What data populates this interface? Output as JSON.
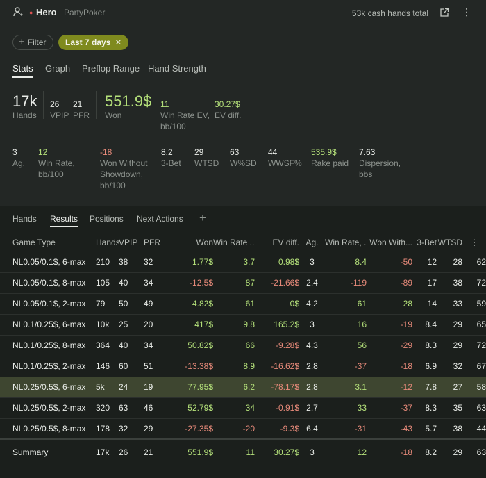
{
  "header": {
    "hero": "Hero",
    "site": "PartyPoker",
    "total": "53k cash hands total",
    "more_icon": "⋮"
  },
  "filters": {
    "filter_label": "Filter",
    "chip_label": "Last 7 days",
    "chip_close": "✕"
  },
  "tabs_top": [
    "Stats",
    "Graph",
    "Preflop Range",
    "Hand Strength"
  ],
  "stats_top": {
    "hands": {
      "value": "17k",
      "label": "Hands"
    },
    "vpip": {
      "value": "26",
      "label": "VPIP"
    },
    "pfr": {
      "value": "21",
      "label": "PFR"
    },
    "won": {
      "value": "551.9$",
      "label": "Won"
    },
    "winrate_ev": {
      "value": "11",
      "label1": "Win Rate EV,",
      "label2": "bb/100"
    },
    "ev_diff": {
      "value": "30.27$",
      "label": "EV diff."
    }
  },
  "stats_bottom": {
    "ag": {
      "value": "3",
      "label": "Ag."
    },
    "winrate": {
      "value": "12",
      "label1": "Win Rate,",
      "label2": "bb/100"
    },
    "wws": {
      "value": "-18",
      "label1": "Won Without",
      "label2": "Showdown,",
      "label3": "bb/100"
    },
    "threebet": {
      "value": "8.2",
      "label": "3-Bet"
    },
    "wtsd": {
      "value": "29",
      "label": "WTSD"
    },
    "wsd": {
      "value": "63",
      "label": "W%SD"
    },
    "wwsf": {
      "value": "44",
      "label": "WWSF%"
    },
    "rake": {
      "value": "535.9$",
      "label": "Rake paid"
    },
    "disp": {
      "value": "7.63",
      "label1": "Dispersion,",
      "label2": "bbs"
    }
  },
  "tabs_bottom": [
    "Hands",
    "Results",
    "Positions",
    "Next Actions"
  ],
  "tab_add": "+",
  "table": {
    "headers": [
      "Game Type",
      "Hands",
      "VPIP",
      "PFR",
      "Won",
      "Win Rate ...",
      "EV diff.",
      "Ag.",
      "Win Rate, ...",
      "Won With...",
      "3-Bet",
      "WTSD",
      "⋮"
    ],
    "rows": [
      [
        "NL0.05/0.1$, 6-max",
        "210",
        "38",
        "32",
        "1.77$",
        "3.7",
        "0.98$",
        "3",
        "8.4",
        "-50",
        "12",
        "28",
        "62"
      ],
      [
        "NL0.05/0.1$, 8-max",
        "105",
        "40",
        "34",
        "-12.5$",
        "87",
        "-21.66$",
        "2.4",
        "-119",
        "-89",
        "17",
        "38",
        "72"
      ],
      [
        "NL0.05/0.1$, 2-max",
        "79",
        "50",
        "49",
        "4.82$",
        "61",
        "0$",
        "4.2",
        "61",
        "28",
        "14",
        "33",
        "59"
      ],
      [
        "NL0.1/0.25$, 6-max",
        "10k",
        "25",
        "20",
        "417$",
        "9.8",
        "165.2$",
        "3",
        "16",
        "-19",
        "8.4",
        "29",
        "65"
      ],
      [
        "NL0.1/0.25$, 8-max",
        "364",
        "40",
        "34",
        "50.82$",
        "66",
        "-9.28$",
        "4.3",
        "56",
        "-29",
        "8.3",
        "29",
        "72"
      ],
      [
        "NL0.1/0.25$, 2-max",
        "146",
        "60",
        "51",
        "-13.38$",
        "8.9",
        "-16.62$",
        "2.8",
        "-37",
        "-18",
        "6.9",
        "32",
        "67"
      ],
      [
        "NL0.25/0.5$, 6-max",
        "5k",
        "24",
        "19",
        "77.95$",
        "6.2",
        "-78.17$",
        "2.8",
        "3.1",
        "-12",
        "7.8",
        "27",
        "58"
      ],
      [
        "NL0.25/0.5$, 2-max",
        "320",
        "63",
        "46",
        "52.79$",
        "34",
        "-0.91$",
        "2.7",
        "33",
        "-37",
        "8.3",
        "35",
        "63"
      ],
      [
        "NL0.25/0.5$, 8-max",
        "178",
        "32",
        "29",
        "-27.35$",
        "-20",
        "-9.3$",
        "6.4",
        "-31",
        "-43",
        "5.7",
        "38",
        "44"
      ]
    ],
    "summary": [
      "Summary",
      "17k",
      "26",
      "21",
      "551.9$",
      "11",
      "30.27$",
      "3",
      "12",
      "-18",
      "8.2",
      "29",
      "63"
    ],
    "selected_row": 6
  },
  "colors": {
    "positive": "#b4e07a",
    "negative": "#e78a7a",
    "chip": "#7f8a1e",
    "selected_row": "#3e4630"
  }
}
